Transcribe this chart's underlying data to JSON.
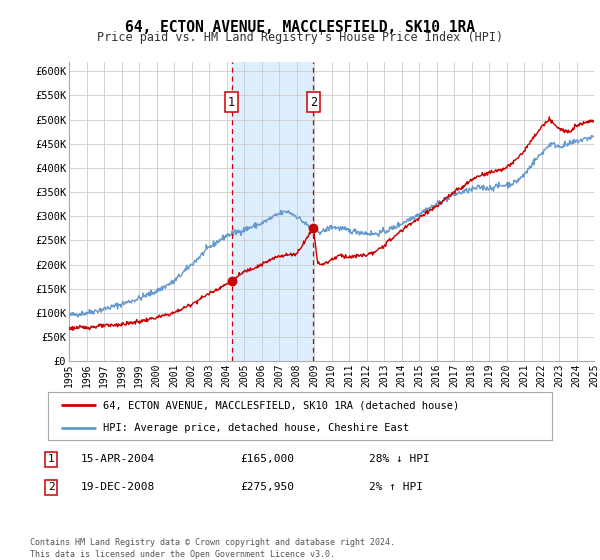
{
  "title": "64, ECTON AVENUE, MACCLESFIELD, SK10 1RA",
  "subtitle": "Price paid vs. HM Land Registry's House Price Index (HPI)",
  "legend_line1": "64, ECTON AVENUE, MACCLESFIELD, SK10 1RA (detached house)",
  "legend_line2": "HPI: Average price, detached house, Cheshire East",
  "sale1_date": "15-APR-2004",
  "sale1_price": "£165,000",
  "sale1_hpi": "28% ↓ HPI",
  "sale1_year": 2004.29,
  "sale1_value": 165000,
  "sale2_date": "19-DEC-2008",
  "sale2_price": "£275,950",
  "sale2_hpi": "2% ↑ HPI",
  "sale2_year": 2008.97,
  "sale2_value": 275950,
  "shaded_x1": 2004.29,
  "shaded_x2": 2008.97,
  "ylim_min": 0,
  "ylim_max": 620000,
  "xlim_min": 1995,
  "xlim_max": 2025,
  "ylabel_ticks": [
    0,
    50000,
    100000,
    150000,
    200000,
    250000,
    300000,
    350000,
    400000,
    450000,
    500000,
    550000,
    600000
  ],
  "ylabel_labels": [
    "£0",
    "£50K",
    "£100K",
    "£150K",
    "£200K",
    "£250K",
    "£300K",
    "£350K",
    "£400K",
    "£450K",
    "£500K",
    "£550K",
    "£600K"
  ],
  "xtick_years": [
    1995,
    1996,
    1997,
    1998,
    1999,
    2000,
    2001,
    2002,
    2003,
    2004,
    2005,
    2006,
    2007,
    2008,
    2009,
    2010,
    2011,
    2012,
    2013,
    2014,
    2015,
    2016,
    2017,
    2018,
    2019,
    2020,
    2021,
    2022,
    2023,
    2024,
    2025
  ],
  "red_line_color": "#cc0000",
  "blue_line_color": "#6699cc",
  "shaded_color": "#ddeeff",
  "grid_color": "#cccccc",
  "background_color": "#ffffff",
  "footnote1": "Contains HM Land Registry data © Crown copyright and database right 2024.",
  "footnote2": "This data is licensed under the Open Government Licence v3.0."
}
